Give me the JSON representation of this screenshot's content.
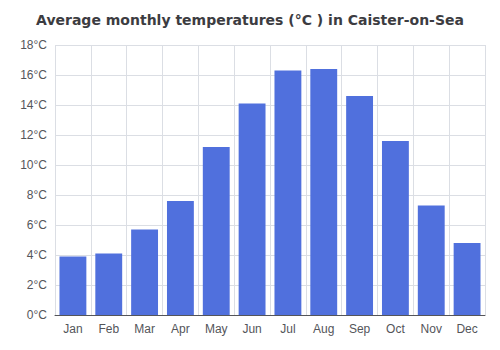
{
  "chart_data": {
    "type": "bar",
    "title": "Average monthly temperatures (°C ) in Caister-on-Sea",
    "categories": [
      "Jan",
      "Feb",
      "Mar",
      "Apr",
      "May",
      "Jun",
      "Jul",
      "Aug",
      "Sep",
      "Oct",
      "Nov",
      "Dec"
    ],
    "values": [
      3.9,
      4.1,
      5.7,
      7.6,
      11.2,
      14.1,
      16.3,
      16.4,
      14.6,
      11.6,
      7.3,
      4.8
    ],
    "ylim": [
      0,
      18
    ],
    "yticks": [
      {
        "value": 0,
        "label": "0°C"
      },
      {
        "value": 2,
        "label": "2°C"
      },
      {
        "value": 4,
        "label": "4°C"
      },
      {
        "value": 6,
        "label": "6°C"
      },
      {
        "value": 8,
        "label": "8°C"
      },
      {
        "value": 10,
        "label": "10°C"
      },
      {
        "value": 12,
        "label": "12°C"
      },
      {
        "value": 14,
        "label": "14°C"
      },
      {
        "value": 16,
        "label": "16°C"
      },
      {
        "value": 18,
        "label": "18°C"
      }
    ],
    "grid": true
  }
}
